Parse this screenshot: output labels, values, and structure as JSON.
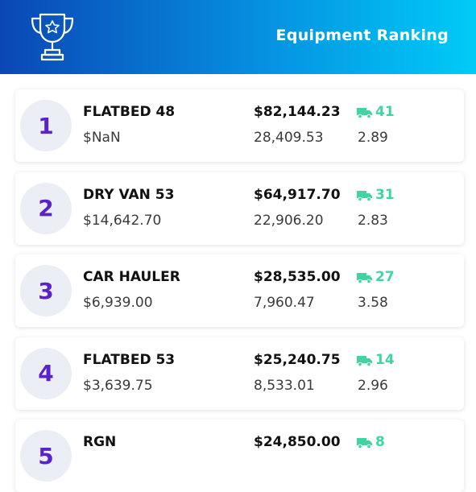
{
  "header": {
    "title": "Equipment Ranking"
  },
  "rows": [
    {
      "rank": "1",
      "name": "FLATBED 48",
      "sub": "$NaN",
      "amount": "$82,144.23",
      "count": "41",
      "miles": "28,409.53",
      "rate": "2.89"
    },
    {
      "rank": "2",
      "name": "DRY VAN 53",
      "sub": "$14,642.70",
      "amount": "$64,917.70",
      "count": "31",
      "miles": "22,906.20",
      "rate": "2.83"
    },
    {
      "rank": "3",
      "name": "CAR HAULER",
      "sub": "$6,939.00",
      "amount": "$28,535.00",
      "count": "27",
      "miles": "7,960.47",
      "rate": "3.58"
    },
    {
      "rank": "4",
      "name": "FLATBED 53",
      "sub": "$3,639.75",
      "amount": "$25,240.75",
      "count": "14",
      "miles": "8,533.01",
      "rate": "2.96"
    },
    {
      "rank": "5",
      "name": "RGN",
      "amount": "$24,850.00",
      "count": "8"
    }
  ]
}
